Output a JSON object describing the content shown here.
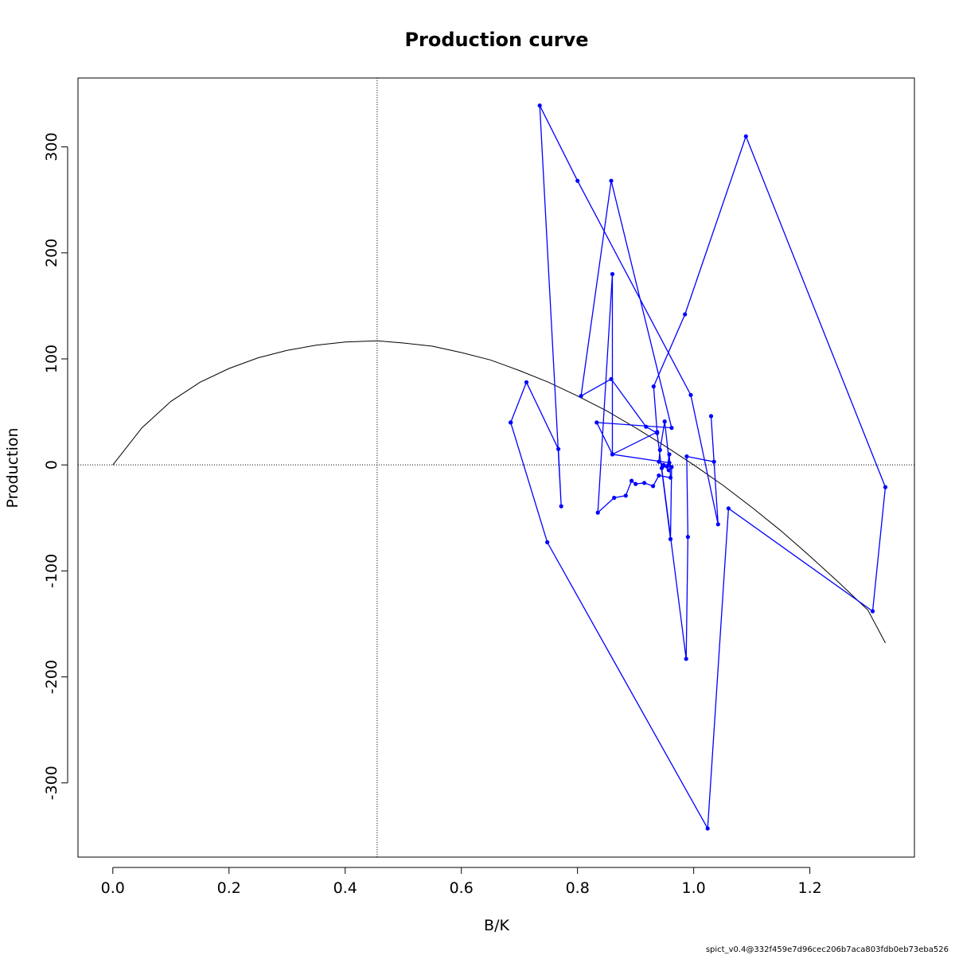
{
  "chart_data": {
    "type": "line",
    "title": "Production curve",
    "xlabel": "B/K",
    "ylabel": "Production",
    "xlim": [
      -0.06,
      1.38
    ],
    "ylim": [
      -370,
      365
    ],
    "xticks": [
      0.0,
      0.2,
      0.4,
      0.6,
      0.8,
      1.0,
      1.2
    ],
    "xtick_labels": [
      "0.0",
      "0.2",
      "0.4",
      "0.6",
      "0.8",
      "1.0",
      "1.2"
    ],
    "yticks": [
      -300,
      -200,
      -100,
      0,
      100,
      200,
      300
    ],
    "ytick_labels": [
      "-300",
      "-200",
      "-100",
      "0",
      "100",
      "200",
      "300"
    ],
    "reference_lines": {
      "vertical_x": 0.455,
      "horizontal_y": 0
    },
    "grid": false,
    "colors": {
      "observed": "#0000ff",
      "curve": "#000000",
      "reference": "#000000"
    },
    "series": [
      {
        "type": "curve",
        "color": "#000000",
        "x": [
          0.0,
          0.05,
          0.1,
          0.15,
          0.2,
          0.25,
          0.3,
          0.35,
          0.4,
          0.455,
          0.5,
          0.55,
          0.6,
          0.65,
          0.7,
          0.75,
          0.8,
          0.85,
          0.9,
          0.95,
          1.0,
          1.05,
          1.1,
          1.15,
          1.2,
          1.25,
          1.3,
          1.33
        ],
        "y": [
          0,
          35,
          60,
          78,
          91,
          101,
          108,
          113,
          116,
          117,
          115,
          112,
          106,
          99,
          89,
          78,
          65,
          51,
          35,
          18,
          0,
          -19,
          -40,
          -62,
          -86,
          -111,
          -137,
          -168
        ]
      },
      {
        "type": "line+points",
        "color": "#0000ff",
        "x": [
          0.685,
          0.712,
          0.767,
          0.772,
          0.735,
          0.8,
          0.995,
          1.042,
          1.03,
          1.035,
          0.988,
          0.99,
          0.987,
          0.945,
          0.955,
          0.958,
          0.96,
          0.94,
          0.93,
          0.915,
          0.9,
          0.893,
          0.883,
          0.863,
          0.835,
          0.86,
          0.86,
          0.958,
          0.95,
          0.942,
          0.94,
          0.948,
          0.957,
          0.962,
          0.96,
          0.937,
          0.918,
          0.858,
          0.806,
          0.858,
          0.962,
          0.833,
          0.86,
          0.937,
          0.931,
          0.985,
          1.09,
          1.33,
          1.308,
          1.06,
          1.024,
          0.748,
          0.685
        ],
        "y": [
          40,
          78,
          15,
          -39,
          339,
          268,
          66,
          -56,
          46,
          3,
          8,
          -68,
          -183,
          -3,
          -1,
          10,
          -12,
          -10,
          -20,
          -17,
          -18,
          -15,
          -29,
          -31,
          -45,
          180,
          10,
          2,
          41,
          14,
          3,
          0,
          -5,
          -2,
          -70,
          30,
          36,
          81,
          65,
          268,
          35,
          40,
          10,
          31,
          74,
          142,
          310,
          -21,
          -138,
          -41,
          -343,
          -73,
          40
        ]
      }
    ],
    "footer": "spict_v0.4@332f459e7d96cec206b7aca803fdb0eb73eba526"
  }
}
